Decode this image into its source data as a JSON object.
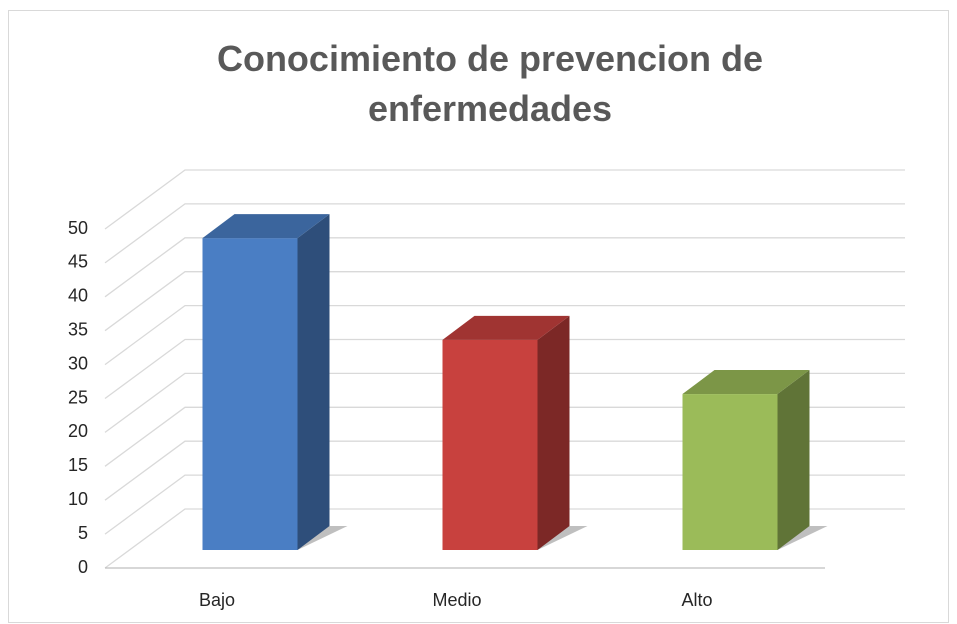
{
  "chart_data": {
    "type": "bar3d",
    "title": "Conocimiento de prevencion de enfermedades",
    "categories": [
      "Bajo",
      "Medio",
      "Alto"
    ],
    "values": [
      46,
      31,
      23
    ],
    "colors": [
      "#4a7ec4",
      "#c8413e",
      "#9bbb59"
    ],
    "ylim": [
      0,
      50
    ],
    "yticks": [
      0,
      5,
      10,
      15,
      20,
      25,
      30,
      35,
      40,
      45,
      50
    ],
    "grid": true
  }
}
